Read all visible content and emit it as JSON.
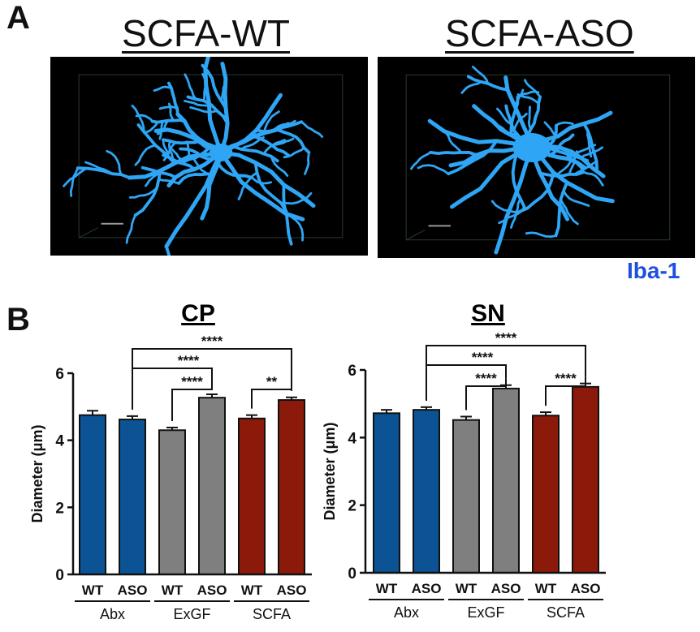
{
  "figure": {
    "panel_a": "A",
    "panel_b": "B",
    "image_titles": [
      "SCFA-WT",
      "SCFA-ASO"
    ],
    "stain": "Iba-1",
    "colors": {
      "blue": "#0b5394",
      "gray": "#7f7f7f",
      "red": "#8b1a0a",
      "stain": "#1f4fe0",
      "microglia": "#2ea6f5"
    }
  },
  "chart_data": [
    {
      "type": "bar",
      "title": "CP",
      "ylabel": "Diameter (μm)",
      "ylim": [
        0,
        6
      ],
      "yticks": [
        0,
        2,
        4,
        6
      ],
      "categories": [
        "WT",
        "ASO",
        "WT",
        "ASO",
        "WT",
        "ASO"
      ],
      "groups": [
        {
          "name": "Abx",
          "bars": [
            0,
            1
          ]
        },
        {
          "name": "ExGF",
          "bars": [
            2,
            3
          ]
        },
        {
          "name": "SCFA",
          "bars": [
            4,
            5
          ]
        }
      ],
      "values": [
        4.75,
        4.62,
        4.3,
        5.27,
        4.65,
        5.2
      ],
      "errors": [
        0.13,
        0.1,
        0.08,
        0.1,
        0.1,
        0.08
      ],
      "bar_colors": [
        "blue",
        "blue",
        "gray",
        "gray",
        "red",
        "red"
      ],
      "significance": [
        {
          "from": 1,
          "to": 5,
          "label": "****"
        },
        {
          "from": 1,
          "to": 3,
          "label": "****"
        },
        {
          "from": 2,
          "to": 3,
          "label": "****"
        },
        {
          "from": 4,
          "to": 5,
          "label": "**"
        }
      ]
    },
    {
      "type": "bar",
      "title": "SN",
      "ylabel": "Diameter (μm)",
      "ylim": [
        0,
        6
      ],
      "yticks": [
        0,
        2,
        4,
        6
      ],
      "categories": [
        "WT",
        "ASO",
        "WT",
        "ASO",
        "WT",
        "ASO"
      ],
      "groups": [
        {
          "name": "Abx",
          "bars": [
            0,
            1
          ]
        },
        {
          "name": "ExGF",
          "bars": [
            2,
            3
          ]
        },
        {
          "name": "SCFA",
          "bars": [
            4,
            5
          ]
        }
      ],
      "values": [
        4.72,
        4.82,
        4.52,
        5.45,
        4.65,
        5.5
      ],
      "errors": [
        0.1,
        0.08,
        0.1,
        0.1,
        0.1,
        0.1
      ],
      "bar_colors": [
        "blue",
        "blue",
        "gray",
        "gray",
        "red",
        "red"
      ],
      "significance": [
        {
          "from": 1,
          "to": 5,
          "label": "****"
        },
        {
          "from": 1,
          "to": 3,
          "label": "****"
        },
        {
          "from": 2,
          "to": 3,
          "label": "****"
        },
        {
          "from": 4,
          "to": 5,
          "label": "****"
        }
      ]
    }
  ]
}
